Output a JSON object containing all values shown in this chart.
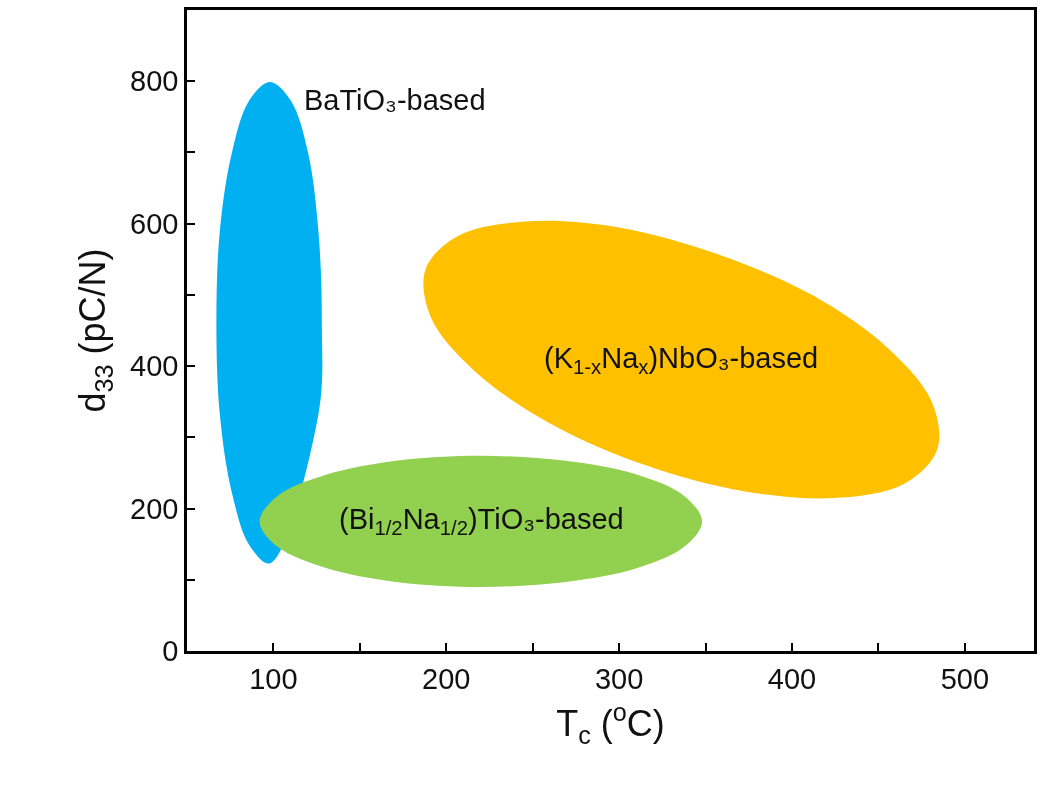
{
  "chart_data": {
    "type": "area",
    "xlabel": "T$_{c}$ ($^{o}$C)",
    "ylabel": "d$_{33}$ (pC/N)",
    "xlim": [
      50,
      540
    ],
    "ylim": [
      0,
      900
    ],
    "xticks": [
      100,
      {
        "value": 150,
        "label": null
      },
      200,
      {
        "value": 250,
        "label": null
      },
      300,
      {
        "value": 350,
        "label": null
      },
      400,
      {
        "value": 450,
        "label": null
      },
      500
    ],
    "yticks": [
      0,
      {
        "value": 100,
        "label": null
      },
      200,
      {
        "value": 300,
        "label": null
      },
      400,
      {
        "value": 500,
        "label": null
      },
      600,
      {
        "value": 700,
        "label": null
      },
      800
    ],
    "legend": false,
    "series": [
      {
        "name": "BaTiO₃-based",
        "color": "#00b0f0",
        "x": [
          128,
          126,
          120,
          110,
          98,
          86,
          76,
          69,
          67,
          69,
          76,
          86,
          98,
          126
        ],
        "values": [
          461,
          590,
          700,
          773,
          799,
          773,
          700,
          590,
          461,
          332,
          222,
          149,
          123,
          332
        ]
      },
      {
        "name": "(K$_{1-x}$Na$_{x}$)NbO₃-based",
        "color": "#ffc000",
        "x": [
          484,
          465,
          426,
          373,
          315,
          259,
          216,
          191,
          188,
          207,
          246,
          299,
          357,
          413,
          456,
          481
        ],
        "values": [
          283,
          235,
          215,
          224,
          261,
          321,
          394,
          469,
          536,
          583,
          603,
          595,
          557,
          498,
          424,
          349
        ]
      },
      {
        "name": "(Bi$_{1/2}$Na$_{1/2}$)TiO₃-based",
        "color": "#92d050",
        "x": [
          348,
          338,
          311,
          269,
          220,
          171,
          130,
          102,
          92,
          102,
          130,
          171,
          220,
          269,
          311,
          338
        ],
        "values": [
          182,
          217,
          247,
          267,
          274,
          267,
          247,
          217,
          182,
          147,
          117,
          97,
          90,
          97,
          117,
          147
        ]
      }
    ]
  }
}
